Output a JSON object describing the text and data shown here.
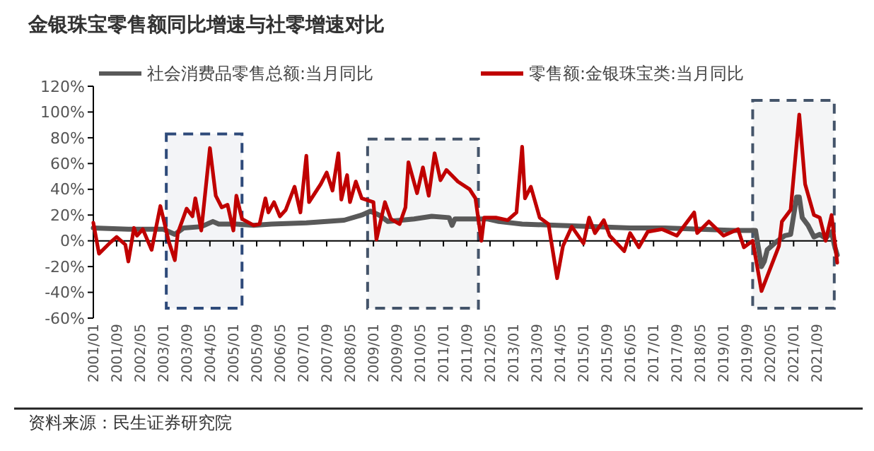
{
  "chart_data": {
    "type": "line",
    "title": "金银珠宝零售额同比增速与社零增速对比",
    "annotations": [
      "资料来源：民生证券研究院"
    ],
    "xlim": [
      "2001-01",
      "2022-04"
    ],
    "xticks": [
      {
        "value": "2001-01",
        "label": "2001/01"
      },
      {
        "value": "2001-09",
        "label": "2001/09"
      },
      {
        "value": "2002-05",
        "label": "2002/05"
      },
      {
        "value": "2003-01",
        "label": "2003/01"
      },
      {
        "value": "2003-09",
        "label": "2003/09"
      },
      {
        "value": "2004-05",
        "label": "2004/05"
      },
      {
        "value": "2005-01",
        "label": "2005/01"
      },
      {
        "value": "2005-09",
        "label": "2005/09"
      },
      {
        "value": "2006-05",
        "label": "2006/05"
      },
      {
        "value": "2007-01",
        "label": "2007/01"
      },
      {
        "value": "2007-09",
        "label": "2007/09"
      },
      {
        "value": "2008-05",
        "label": "2008/05"
      },
      {
        "value": "2009-01",
        "label": "2009/01"
      },
      {
        "value": "2009-09",
        "label": "2009/09"
      },
      {
        "value": "2010-05",
        "label": "2010/05"
      },
      {
        "value": "2011-01",
        "label": "2011/01"
      },
      {
        "value": "2011-09",
        "label": "2011/09"
      },
      {
        "value": "2012-05",
        "label": "2012/05"
      },
      {
        "value": "2013-01",
        "label": "2013/01"
      },
      {
        "value": "2013-09",
        "label": "2013/09"
      },
      {
        "value": "2014-05",
        "label": "2014/05"
      },
      {
        "value": "2015-01",
        "label": "2015/01"
      },
      {
        "value": "2015-09",
        "label": "2015/09"
      },
      {
        "value": "2016-05",
        "label": "2016/05"
      },
      {
        "value": "2017-01",
        "label": "2017/01"
      },
      {
        "value": "2017-09",
        "label": "2017/09"
      },
      {
        "value": "2018-05",
        "label": "2018/05"
      },
      {
        "value": "2019-01",
        "label": "2019/01"
      },
      {
        "value": "2019-09",
        "label": "2019/09"
      },
      {
        "value": "2020-05",
        "label": "2020/05"
      },
      {
        "value": "2021-01",
        "label": "2021/01"
      },
      {
        "value": "2021-09",
        "label": "2021/09"
      }
    ],
    "ylim": [
      -60,
      120
    ],
    "yticks": [
      {
        "value": -60,
        "label": "-60%"
      },
      {
        "value": -40,
        "label": "-40%"
      },
      {
        "value": -20,
        "label": "-20%"
      },
      {
        "value": 0,
        "label": "0%"
      },
      {
        "value": 20,
        "label": "20%"
      },
      {
        "value": 40,
        "label": "40%"
      },
      {
        "value": 60,
        "label": "60%"
      },
      {
        "value": 80,
        "label": "80%"
      },
      {
        "value": 100,
        "label": "100%"
      },
      {
        "value": 120,
        "label": "120%"
      }
    ],
    "legend": "top",
    "marker": "none",
    "line_style": "solid",
    "bands": [
      {
        "axis": "x",
        "from": "2003-02",
        "to": "2005-04",
        "color": "#2e4a7a"
      },
      {
        "axis": "x",
        "from": "2008-11",
        "to": "2012-01",
        "color": "#44546a"
      },
      {
        "axis": "x",
        "from": "2019-11",
        "to": "2022-03",
        "color": "#44546a"
      }
    ],
    "series": [
      {
        "name": "社会消费品零售总额:当月同比",
        "color": "#595959",
        "x": [
          "2001-01",
          "2002-01",
          "2003-01",
          "2003-05",
          "2003-08",
          "2004-02",
          "2004-06",
          "2004-08",
          "2005-02",
          "2005-08",
          "2006-02",
          "2007-02",
          "2008-03",
          "2008-09",
          "2008-12",
          "2009-03",
          "2009-06",
          "2010-03",
          "2010-09",
          "2011-03",
          "2011-04",
          "2011-05",
          "2012-04",
          "2012-08",
          "2013-04",
          "2014-04",
          "2015-04",
          "2016-05",
          "2017-05",
          "2018-05",
          "2019-05",
          "2019-12",
          "2020-02",
          "2020-03",
          "2020-04",
          "2020-07",
          "2020-10",
          "2020-12",
          "2021-02",
          "2021-03",
          "2021-04",
          "2021-06",
          "2021-08",
          "2021-10",
          "2021-12",
          "2022-02",
          "2022-03",
          "2022-04"
        ],
        "values": [
          10,
          9,
          9,
          5,
          10,
          11,
          15,
          13,
          13,
          12,
          13,
          14,
          16,
          20,
          23,
          20,
          15,
          17,
          19,
          18,
          12,
          17,
          17,
          15,
          13,
          12,
          11,
          10,
          10,
          9,
          8,
          8,
          -20,
          -16,
          -7,
          -1,
          4,
          5,
          34,
          34,
          18,
          12,
          3,
          5,
          2,
          7,
          -3,
          -11
        ]
      },
      {
        "name": "零售额:金银珠宝类:当月同比",
        "color": "#c00000",
        "x": [
          "2001-01",
          "2001-03",
          "2001-07",
          "2001-09",
          "2001-12",
          "2002-01",
          "2002-03",
          "2002-04",
          "2002-06",
          "2002-09",
          "2002-12",
          "2003-03",
          "2003-05",
          "2003-06",
          "2003-09",
          "2003-11",
          "2003-12",
          "2004-02",
          "2004-05",
          "2004-07",
          "2004-09",
          "2004-11",
          "2005-01",
          "2005-02",
          "2005-04",
          "2005-08",
          "2005-10",
          "2005-12",
          "2006-01",
          "2006-03",
          "2006-05",
          "2006-07",
          "2006-10",
          "2006-12",
          "2007-02",
          "2007-03",
          "2007-07",
          "2007-09",
          "2007-11",
          "2008-01",
          "2008-02",
          "2008-04",
          "2008-05",
          "2008-07",
          "2008-09",
          "2009-01",
          "2009-02",
          "2009-05",
          "2009-07",
          "2009-10",
          "2009-12",
          "2010-01",
          "2010-04",
          "2010-06",
          "2010-08",
          "2010-10",
          "2010-12",
          "2011-02",
          "2011-06",
          "2011-10",
          "2011-12",
          "2012-02",
          "2012-03",
          "2012-07",
          "2012-11",
          "2013-02",
          "2013-04",
          "2013-05",
          "2013-07",
          "2013-10",
          "2014-01",
          "2014-04",
          "2014-06",
          "2014-09",
          "2015-01",
          "2015-03",
          "2015-05",
          "2015-08",
          "2015-10",
          "2016-03",
          "2016-05",
          "2016-08",
          "2016-11",
          "2017-04",
          "2017-09",
          "2018-03",
          "2018-04",
          "2018-08",
          "2019-01",
          "2019-06",
          "2019-08",
          "2019-11",
          "2020-02",
          "2020-08",
          "2020-09",
          "2020-12",
          "2021-03",
          "2021-05",
          "2021-08",
          "2021-10",
          "2021-12",
          "2022-02",
          "2022-04"
        ],
        "values": [
          14,
          -10,
          -1,
          3,
          -3,
          -16,
          10,
          4,
          9,
          -7,
          27,
          -1,
          -15,
          6,
          25,
          19,
          33,
          8,
          72,
          35,
          26,
          28,
          8,
          35,
          17,
          12,
          13,
          33,
          22,
          30,
          19,
          24,
          42,
          22,
          66,
          30,
          44,
          53,
          39,
          68,
          32,
          51,
          30,
          46,
          33,
          30,
          1,
          30,
          17,
          13,
          26,
          61,
          37,
          57,
          35,
          68,
          47,
          55,
          46,
          40,
          33,
          0,
          18,
          18,
          16,
          22,
          73,
          33,
          42,
          18,
          13,
          -29,
          -4,
          11,
          -2,
          18,
          6,
          16,
          4,
          -8,
          6,
          -5,
          7,
          9,
          4,
          22,
          6,
          15,
          4,
          9,
          -5,
          0,
          -39,
          -4,
          15,
          24,
          98,
          44,
          20,
          18,
          0,
          20,
          -17
        ]
      }
    ]
  }
}
